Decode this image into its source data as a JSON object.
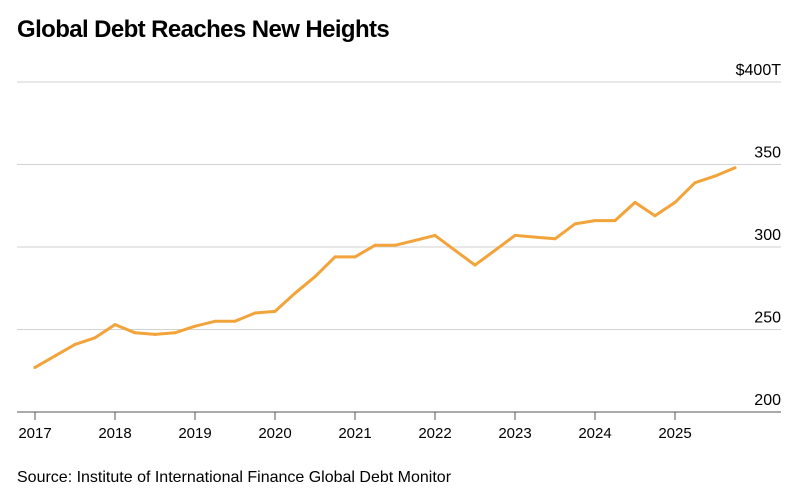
{
  "title": "Global Debt Reaches New Heights",
  "source": "Source: Institute of International Finance Global Debt Monitor",
  "chart_data": {
    "type": "line",
    "title": "Global Debt Reaches New Heights",
    "xlabel": "",
    "ylabel": "",
    "y_unit_prefix": "$",
    "y_unit_suffix": "T",
    "xlim": [
      2017.0,
      2026.0
    ],
    "ylim": [
      200,
      400
    ],
    "y_ticks": [
      {
        "value": 400,
        "label": "$400T"
      },
      {
        "value": 350,
        "label": "350"
      },
      {
        "value": 300,
        "label": "300"
      },
      {
        "value": 250,
        "label": "250"
      },
      {
        "value": 200,
        "label": "200"
      }
    ],
    "x_ticks": [
      {
        "value": 2017,
        "label": "2017"
      },
      {
        "value": 2018,
        "label": "2018"
      },
      {
        "value": 2019,
        "label": "2019"
      },
      {
        "value": 2020,
        "label": "2020"
      },
      {
        "value": 2021,
        "label": "2021"
      },
      {
        "value": 2022,
        "label": "2022"
      },
      {
        "value": 2023,
        "label": "2023"
      },
      {
        "value": 2024,
        "label": "2024"
      },
      {
        "value": 2025,
        "label": "2025"
      }
    ],
    "grid": true,
    "line_color": "#f2a33a",
    "series": [
      {
        "x": [
          2017.0,
          2017.25,
          2017.5,
          2017.75,
          2018.0,
          2018.25,
          2018.5,
          2018.75,
          2019.0,
          2019.25,
          2019.5,
          2019.75,
          2020.0,
          2020.25,
          2020.5,
          2020.75,
          2021.0,
          2021.25,
          2021.5,
          2021.75,
          2022.0,
          2022.25,
          2022.5,
          2022.75,
          2023.0,
          2023.25,
          2023.5,
          2023.75,
          2024.0,
          2024.25,
          2024.5,
          2024.75,
          2025.0,
          2025.25,
          2025.5,
          2025.75
        ],
        "values": [
          227,
          234,
          241,
          245,
          253,
          248,
          247,
          248,
          252,
          255,
          255,
          260,
          261,
          272,
          282,
          294,
          294,
          301,
          301,
          304,
          307,
          298,
          289,
          298,
          307,
          306,
          305,
          314,
          316,
          316,
          327,
          319,
          327,
          339,
          343,
          348
        ]
      }
    ]
  }
}
